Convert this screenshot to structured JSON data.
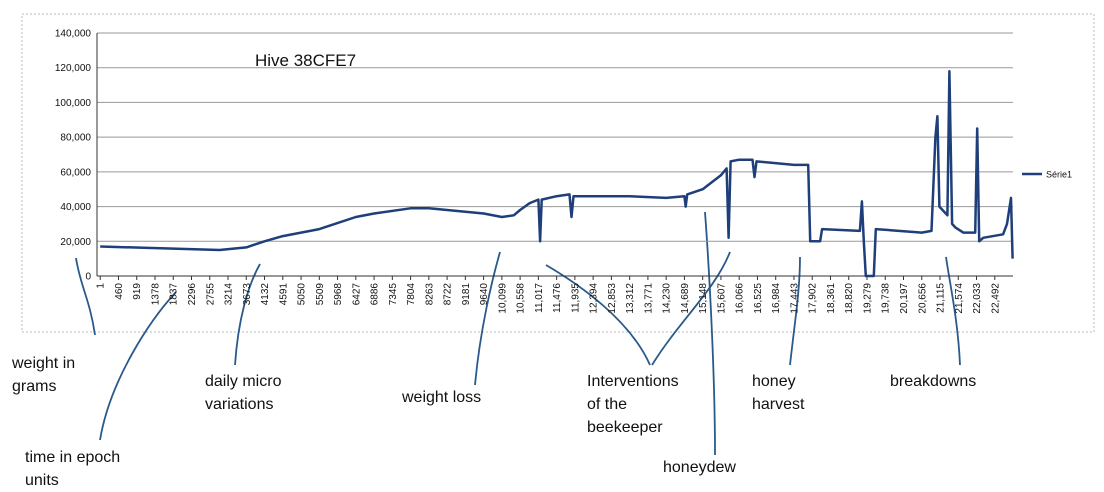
{
  "chart_data": {
    "type": "line",
    "title": "Hive 38CFE7",
    "x": [
      1,
      3000,
      3673,
      4132,
      4591,
      5509,
      6427,
      6886,
      7804,
      8263,
      9181,
      9640,
      10099,
      10400,
      10558,
      10800,
      11017,
      11060,
      11100,
      11476,
      11800,
      11850,
      11900,
      12394,
      13312,
      14230,
      14689,
      14720,
      14760,
      15148,
      15607,
      15750,
      15800,
      15850,
      16066,
      16400,
      16450,
      16500,
      17443,
      17800,
      17850,
      18100,
      18150,
      19100,
      19150,
      19200,
      19250,
      19450,
      19500,
      20656,
      20900,
      21000,
      21050,
      21100,
      21300,
      21350,
      21420,
      21500,
      21700,
      22000,
      22050,
      22100,
      22200,
      22700,
      22800,
      22900,
      22940
    ],
    "series": [
      {
        "name": "Série1",
        "color": "#1f3f7a",
        "values": [
          17000,
          15000,
          16500,
          20000,
          23000,
          27000,
          34000,
          36000,
          39000,
          39000,
          37000,
          36000,
          34000,
          35000,
          38000,
          42000,
          44000,
          20000,
          44000,
          46000,
          47000,
          34000,
          46000,
          46000,
          46000,
          45000,
          46000,
          40000,
          47000,
          50000,
          58000,
          62000,
          22000,
          66000,
          67000,
          67000,
          57000,
          66000,
          64000,
          64000,
          20000,
          20000,
          27000,
          26000,
          43000,
          20000,
          0,
          0,
          27000,
          25000,
          26000,
          80000,
          92000,
          40000,
          35000,
          118000,
          30000,
          28000,
          25000,
          25000,
          85000,
          20000,
          22000,
          24000,
          30000,
          45000,
          10000
        ]
      }
    ],
    "xlim": [
      -80,
      22950
    ],
    "xticks": [
      1,
      460,
      919,
      1378,
      1837,
      2296,
      2755,
      3214,
      3673,
      4132,
      4591,
      5050,
      5509,
      5968,
      6427,
      6886,
      7345,
      7804,
      8263,
      8722,
      9181,
      9640,
      {
        "value": 10099,
        "label": "10,099"
      },
      {
        "value": 10558,
        "label": "10,558"
      },
      {
        "value": 11017,
        "label": "11,017"
      },
      {
        "value": 11476,
        "label": "11,476"
      },
      {
        "value": 11935,
        "label": "11,935"
      },
      {
        "value": 12394,
        "label": "12,394"
      },
      {
        "value": 12853,
        "label": "12,853"
      },
      {
        "value": 13312,
        "label": "13,312"
      },
      {
        "value": 13771,
        "label": "13,771"
      },
      {
        "value": 14230,
        "label": "14,230"
      },
      {
        "value": 14689,
        "label": "14,689"
      },
      {
        "value": 15148,
        "label": "15,148"
      },
      {
        "value": 15607,
        "label": "15,607"
      },
      {
        "value": 16066,
        "label": "16,066"
      },
      {
        "value": 16525,
        "label": "16,525"
      },
      {
        "value": 16984,
        "label": "16,984"
      },
      {
        "value": 17443,
        "label": "17,443"
      },
      {
        "value": 17902,
        "label": "17,902"
      },
      {
        "value": 18361,
        "label": "18,361"
      },
      {
        "value": 18820,
        "label": "18,820"
      },
      {
        "value": 19279,
        "label": "19,279"
      },
      {
        "value": 19738,
        "label": "19,738"
      },
      {
        "value": 20197,
        "label": "20,197"
      },
      {
        "value": 20656,
        "label": "20,656"
      },
      {
        "value": 21115,
        "label": "21,115"
      },
      {
        "value": 21574,
        "label": "21,574"
      },
      {
        "value": 22033,
        "label": "22,033"
      },
      {
        "value": 22492,
        "label": "22,492"
      }
    ],
    "ylim": [
      0,
      140000
    ],
    "yticks": [
      0,
      {
        "value": 20000,
        "label": "20,000"
      },
      {
        "value": 40000,
        "label": "40,000"
      },
      {
        "value": 60000,
        "label": "60,000"
      },
      {
        "value": 80000,
        "label": "80,000"
      },
      {
        "value": 100000,
        "label": "100,000"
      },
      {
        "value": 120000,
        "label": "120,000"
      },
      {
        "value": 140000,
        "label": "140,000"
      }
    ],
    "grid": true,
    "legend": "right",
    "annotations": [
      {
        "lines": [
          "weight in",
          "grams"
        ]
      },
      {
        "lines": [
          "time in epoch",
          "units"
        ]
      },
      {
        "lines": [
          "daily micro",
          "variations"
        ]
      },
      {
        "lines": [
          "weight loss"
        ]
      },
      {
        "lines": [
          "Interventions",
          "of the",
          "beekeeper"
        ]
      },
      {
        "lines": [
          "honeydew"
        ]
      },
      {
        "lines": [
          "honey",
          "harvest"
        ]
      },
      {
        "lines": [
          "breakdowns"
        ]
      }
    ]
  }
}
